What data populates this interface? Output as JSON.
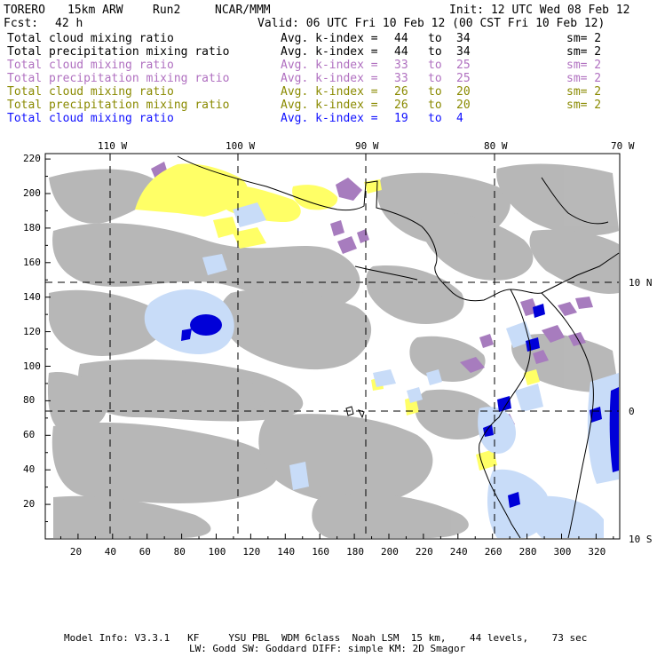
{
  "header": {
    "model": "TORERO",
    "resolution": "15km ARW",
    "run": "Run2",
    "org": "NCAR/MMM",
    "init": "Init: 12 UTC Wed 08 Feb 12",
    "fcst_label": "Fcst:",
    "fcst_hours": "42 h",
    "valid": "Valid: 06 UTC Fri 10 Feb 12 (00 CST Fri 10 Feb 12)"
  },
  "legend": [
    {
      "field": "Total cloud mixing ratio",
      "avg": "Avg. k-index =",
      "from": "44",
      "to_label": "to",
      "to": "34",
      "sm": "sm= 2",
      "color": "#000000"
    },
    {
      "field": "Total precipitation mixing ratio",
      "avg": "Avg. k-index =",
      "from": "44",
      "to_label": "to",
      "to": "34",
      "sm": "sm= 2",
      "color": "#000000"
    },
    {
      "field": "Total cloud mixing ratio",
      "avg": "Avg. k-index =",
      "from": "33",
      "to_label": "to",
      "to": "25",
      "sm": "sm= 2",
      "color": "#b070c0"
    },
    {
      "field": "Total precipitation mixing ratio",
      "avg": "Avg. k-index =",
      "from": "33",
      "to_label": "to",
      "to": "25",
      "sm": "sm= 2",
      "color": "#b070c0"
    },
    {
      "field": "Total cloud mixing ratio",
      "avg": "Avg. k-index =",
      "from": "26",
      "to_label": "to",
      "to": "20",
      "sm": "sm= 2",
      "color": "#8a8a00"
    },
    {
      "field": "Total precipitation mixing ratio",
      "avg": "Avg. k-index =",
      "from": "26",
      "to_label": "to",
      "to": "20",
      "sm": "sm= 2",
      "color": "#8a8a00"
    },
    {
      "field": "Total cloud mixing ratio",
      "avg": "Avg. k-index =",
      "from": "19",
      "to_label": "to",
      "to": "4",
      "sm": "",
      "color": "#1010ff"
    }
  ],
  "map": {
    "lon_labels": [
      "110 W",
      "100 W",
      "90 W",
      "80 W",
      "70 W"
    ],
    "lat_labels": [
      "10 N",
      "0",
      "10 S"
    ],
    "x_ticks": [
      "20",
      "40",
      "60",
      "80",
      "100",
      "120",
      "140",
      "160",
      "180",
      "200",
      "220",
      "240",
      "260",
      "280",
      "300",
      "320"
    ],
    "y_ticks": [
      "220",
      "200",
      "180",
      "160",
      "140",
      "120",
      "100",
      "80",
      "60",
      "40",
      "20"
    ],
    "colors": {
      "low_cloud": "#b4b4b4",
      "mid_cloud": "#a77cbe",
      "high_cloud": "#ffff66",
      "deep_light": "#c8dcf8",
      "deep_dark": "#0000d8",
      "coast": "#000000"
    }
  },
  "footer": {
    "line1": "Model Info: V3.3.1   KF     YSU PBL  WDM 6class  Noah LSM  15 km,    44 levels,    73 sec",
    "line2": "LW: Godd SW: Goddard DIFF: simple KM: 2D Smagor"
  }
}
